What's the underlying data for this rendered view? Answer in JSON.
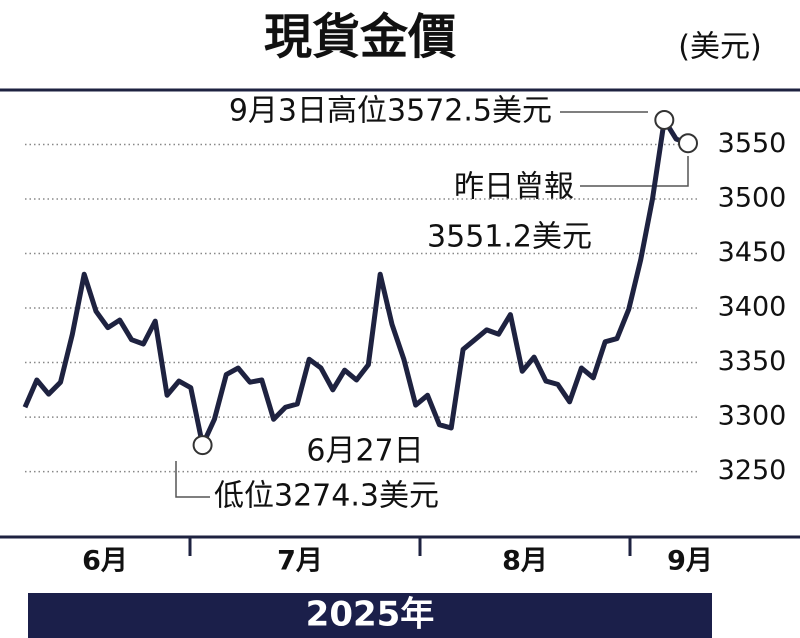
{
  "chart_data": {
    "type": "line",
    "title": "現貨金價",
    "unit": "(美元)",
    "values": [
      3309,
      3334,
      3321,
      3332,
      3376,
      3431,
      3397,
      3382,
      3389,
      3371,
      3367,
      3388,
      3320,
      3333,
      3327,
      3274.3,
      3298,
      3339,
      3345,
      3332,
      3334,
      3298,
      3309,
      3312,
      3353,
      3345,
      3325,
      3343,
      3334,
      3348,
      3431,
      3385,
      3353,
      3311,
      3320,
      3293,
      3290,
      3362,
      3371,
      3380,
      3376,
      3394,
      3342,
      3355,
      3333,
      3330,
      3314,
      3345,
      3336,
      3369,
      3372,
      3399,
      3444,
      3500,
      3572.5,
      3555,
      3551.2
    ],
    "color": "#1e2240",
    "ylim": [
      3190,
      3600
    ],
    "yticks": [
      3250,
      3300,
      3350,
      3400,
      3450,
      3500,
      3550
    ],
    "grid": true,
    "x_labels": [
      "6月",
      "7月",
      "8月",
      "9月"
    ],
    "x_axis_title": "2025年",
    "annotations": [
      "9月3日高位3572.5美元",
      "昨日曾報",
      "3551.2美元",
      "6月27日",
      "低位3274.3美元"
    ]
  }
}
